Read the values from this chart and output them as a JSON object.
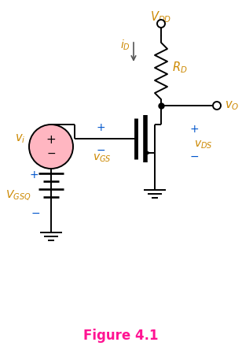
{
  "title": "Figure 4.1",
  "title_color": "#FF1493",
  "title_fontsize": 12,
  "component_color": "#000000",
  "label_color": "#CC8800",
  "blue_label_color": "#0055CC",
  "fig_width": 3.08,
  "fig_height": 4.53,
  "dpi": 100,
  "circle_color": "#FFB6C1",
  "circle_edge_color": "#000000",
  "iD_arrow_color": "#555555"
}
